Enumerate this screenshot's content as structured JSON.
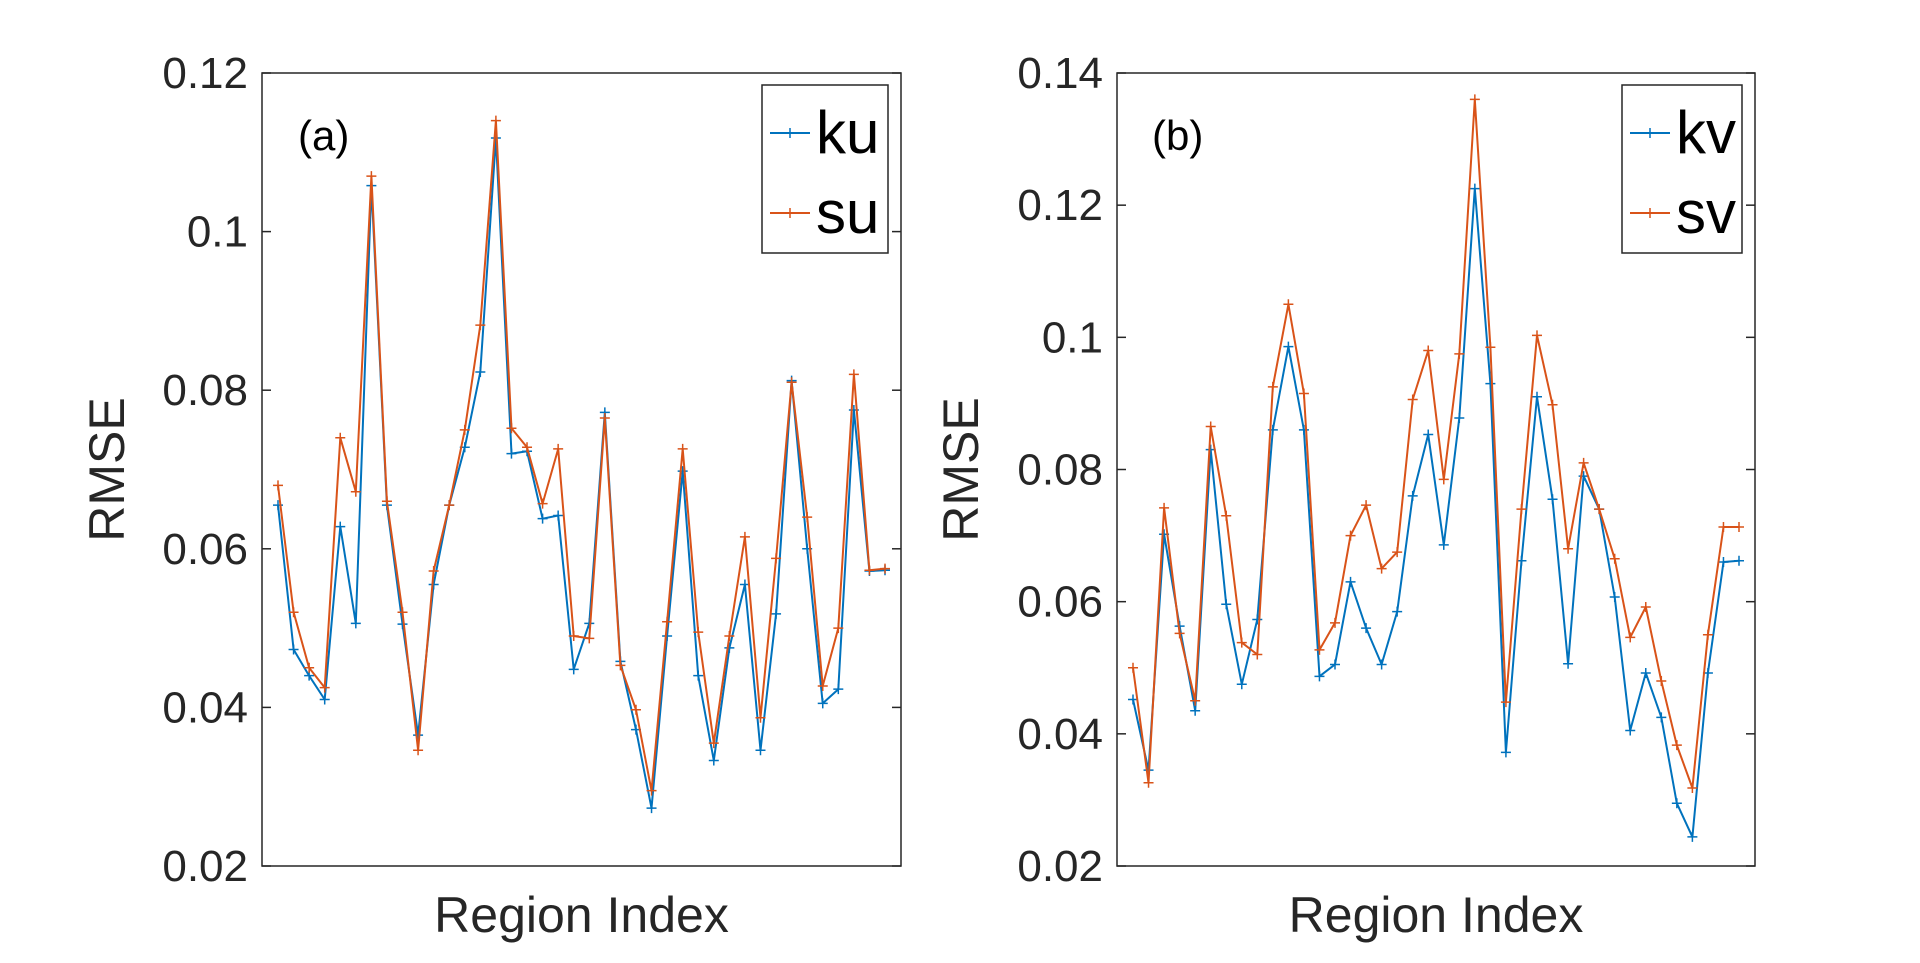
{
  "colors": {
    "blue": "#0072BD",
    "orange": "#D95319",
    "axis": "#262626"
  },
  "chart_data": [
    {
      "type": "line",
      "panel_label": "(a)",
      "xlabel": "Region Index",
      "ylabel": "RMSE",
      "ylim": [
        0.02,
        0.12
      ],
      "yticks": [
        "0.02",
        "0.04",
        "0.06",
        "0.08",
        "0.1",
        "0.12"
      ],
      "ytick_values": [
        0.02,
        0.04,
        0.06,
        0.08,
        0.1,
        0.12
      ],
      "legend_position": "top-right",
      "x": [
        1,
        2,
        3,
        4,
        5,
        6,
        7,
        8,
        9,
        10,
        11,
        12,
        13,
        14,
        15,
        16,
        17,
        18,
        19,
        20,
        21,
        22,
        23,
        24,
        25,
        26,
        27,
        28,
        29,
        30,
        31,
        32,
        33,
        34,
        35,
        36,
        37,
        38,
        39,
        40
      ],
      "series": [
        {
          "name": "ku",
          "color": "#0072BD",
          "values": [
            0.0655,
            0.0473,
            0.044,
            0.041,
            0.0628,
            0.0506,
            0.1058,
            0.0655,
            0.0505,
            0.0365,
            0.0555,
            0.0655,
            0.0728,
            0.0823,
            0.1118,
            0.072,
            0.0723,
            0.0638,
            0.0642,
            0.0448,
            0.0506,
            0.0772,
            0.0458,
            0.0372,
            0.0273,
            0.049,
            0.0698,
            0.044,
            0.0333,
            0.0475,
            0.0555,
            0.0346,
            0.0518,
            0.0812,
            0.06,
            0.0405,
            0.0423,
            0.0775,
            0.0572,
            0.0573
          ]
        },
        {
          "name": "su",
          "color": "#D95319",
          "values": [
            0.068,
            0.052,
            0.045,
            0.0425,
            0.074,
            0.0672,
            0.107,
            0.066,
            0.052,
            0.0346,
            0.0572,
            0.0655,
            0.075,
            0.0882,
            0.114,
            0.0752,
            0.0728,
            0.0657,
            0.0726,
            0.049,
            0.0487,
            0.0765,
            0.0453,
            0.0397,
            0.0295,
            0.0508,
            0.0726,
            0.0495,
            0.0355,
            0.049,
            0.0615,
            0.0387,
            0.0588,
            0.081,
            0.064,
            0.0427,
            0.05,
            0.082,
            0.0573,
            0.0575
          ]
        }
      ]
    },
    {
      "type": "line",
      "panel_label": "(b)",
      "xlabel": "Region Index",
      "ylabel": "RMSE",
      "ylim": [
        0.02,
        0.14
      ],
      "yticks": [
        "0.02",
        "0.04",
        "0.06",
        "0.08",
        "0.1",
        "0.12",
        "0.14"
      ],
      "ytick_values": [
        0.02,
        0.04,
        0.06,
        0.08,
        0.1,
        0.12,
        0.14
      ],
      "legend_position": "top-right",
      "x": [
        1,
        2,
        3,
        4,
        5,
        6,
        7,
        8,
        9,
        10,
        11,
        12,
        13,
        14,
        15,
        16,
        17,
        18,
        19,
        20,
        21,
        22,
        23,
        24,
        25,
        26,
        27,
        28,
        29,
        30,
        31,
        32,
        33,
        34,
        35,
        36,
        37,
        38,
        39,
        40
      ],
      "series": [
        {
          "name": "kv",
          "color": "#0072BD",
          "values": [
            0.0452,
            0.0345,
            0.0702,
            0.0563,
            0.0435,
            0.083,
            0.0596,
            0.0475,
            0.0573,
            0.086,
            0.0986,
            0.086,
            0.0487,
            0.0505,
            0.063,
            0.056,
            0.0505,
            0.0585,
            0.076,
            0.0853,
            0.0686,
            0.0878,
            0.1225,
            0.093,
            0.0372,
            0.0662,
            0.091,
            0.0755,
            0.0506,
            0.079,
            0.074,
            0.0607,
            0.0405,
            0.0492,
            0.0425,
            0.0295,
            0.0244,
            0.0492,
            0.066,
            0.0662
          ]
        },
        {
          "name": "sv",
          "color": "#D95319",
          "values": [
            0.05,
            0.0326,
            0.0742,
            0.0552,
            0.045,
            0.0865,
            0.073,
            0.0538,
            0.052,
            0.0925,
            0.105,
            0.0915,
            0.0527,
            0.0568,
            0.07,
            0.0746,
            0.065,
            0.0675,
            0.0906,
            0.098,
            0.0785,
            0.0975,
            0.136,
            0.0985,
            0.0448,
            0.074,
            0.1003,
            0.0898,
            0.068,
            0.081,
            0.074,
            0.0665,
            0.0546,
            0.0592,
            0.048,
            0.0383,
            0.0318,
            0.055,
            0.0713,
            0.0713
          ]
        }
      ]
    }
  ]
}
